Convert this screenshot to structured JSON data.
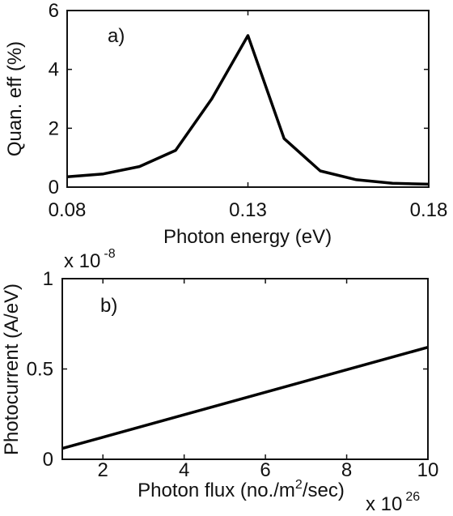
{
  "chart_data": [
    {
      "type": "line",
      "panel_label": "a)",
      "xlabel": "Photon energy (eV)",
      "ylabel": "Quan. eff (%)",
      "xlim": [
        0.08,
        0.18
      ],
      "ylim": [
        0,
        6
      ],
      "x_ticks": [
        0.08,
        0.13,
        0.18
      ],
      "x_tick_labels": [
        "0.08",
        "0.13",
        "0.18"
      ],
      "y_ticks": [
        0,
        2,
        4,
        6
      ],
      "y_tick_labels": [
        "0",
        "2",
        "4",
        "6"
      ],
      "grid": false,
      "series": [
        {
          "x": [
            0.08,
            0.09,
            0.1,
            0.11,
            0.12,
            0.13,
            0.14,
            0.15,
            0.16,
            0.17,
            0.18
          ],
          "y": [
            0.35,
            0.45,
            0.7,
            1.25,
            3.0,
            5.15,
            1.65,
            0.55,
            0.25,
            0.13,
            0.1
          ]
        }
      ]
    },
    {
      "type": "line",
      "panel_label": "b)",
      "xlabel": "Photon flux (no./m²/sec)",
      "xlabel_main": "Photon flux (no./m",
      "xlabel_sup": "2",
      "xlabel_tail": "/sec)",
      "ylabel": "Photocurrent (A/eV)",
      "xlim": [
        1,
        10
      ],
      "ylim": [
        0,
        1
      ],
      "x_ticks": [
        2,
        4,
        6,
        8,
        10
      ],
      "x_tick_labels": [
        "2",
        "4",
        "6",
        "8",
        "10"
      ],
      "y_ticks": [
        0,
        0.5,
        1
      ],
      "y_tick_labels": [
        "0",
        "0.5",
        "1"
      ],
      "y_multiplier": {
        "base": "x 10",
        "exponent": "-8"
      },
      "x_multiplier": {
        "base": "x 10",
        "exponent": "26"
      },
      "grid": false,
      "series": [
        {
          "x": [
            1,
            10
          ],
          "y": [
            0.06,
            0.62
          ]
        }
      ]
    }
  ]
}
